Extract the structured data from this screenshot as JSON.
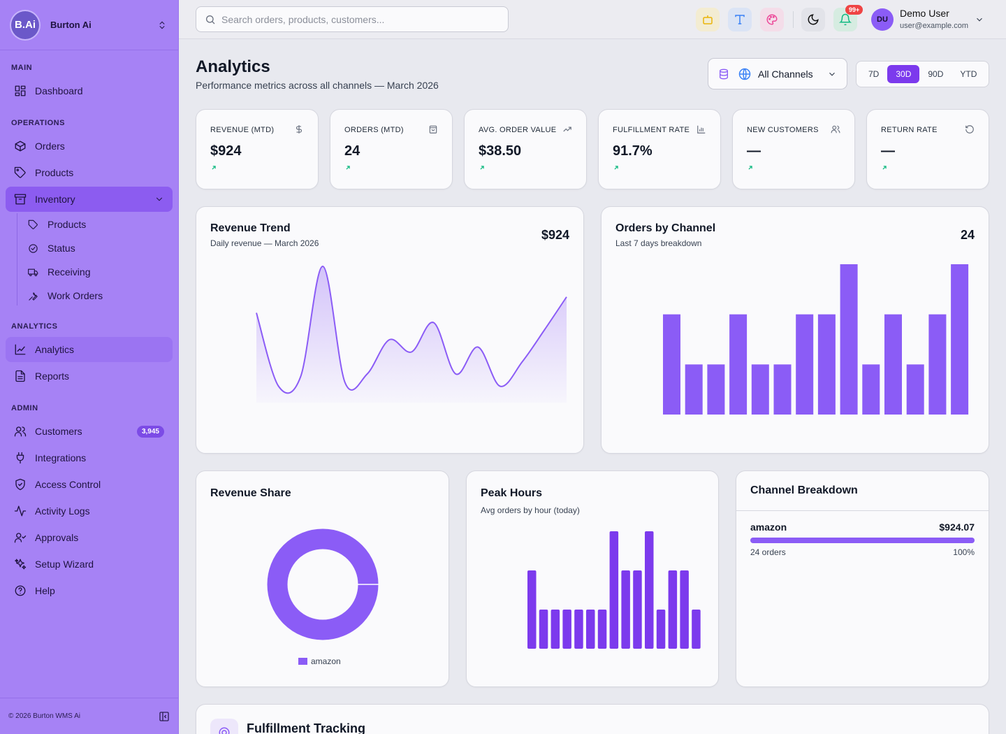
{
  "app": {
    "brand_initials": "B.Ai",
    "brand_name": "Burton Ai",
    "footer": "© 2026 Burton WMS Ai"
  },
  "sidebar": {
    "sections": {
      "main": "MAIN",
      "operations": "OPERATIONS",
      "analytics": "ANALYTICS",
      "admin": "ADMIN"
    },
    "dashboard": "Dashboard",
    "orders": "Orders",
    "products": "Products",
    "inventory": "Inventory",
    "inventory_sub": [
      "Products",
      "Status",
      "Receiving",
      "Work Orders"
    ],
    "analytics": "Analytics",
    "reports": "Reports",
    "customers": "Customers",
    "customers_badge": "3,945",
    "integrations": "Integrations",
    "access_control": "Access Control",
    "activity_logs": "Activity Logs",
    "approvals": "Approvals",
    "setup_wizard": "Setup Wizard",
    "help": "Help"
  },
  "topbar": {
    "search_placeholder": "Search orders, products, customers...",
    "notif_badge": "99+",
    "user_initials": "DU",
    "user_name": "Demo User",
    "user_email": "user@example.com"
  },
  "page": {
    "title": "Analytics",
    "subtitle": "Performance metrics across all channels — March 2026",
    "channel_select": "All Channels",
    "ranges": [
      "7D",
      "30D",
      "90D",
      "YTD"
    ],
    "active_range": "30D"
  },
  "kpis": [
    {
      "label": "REVENUE (MTD)",
      "value": "$924",
      "icon": "dollar-icon"
    },
    {
      "label": "ORDERS (MTD)",
      "value": "24",
      "icon": "shopping-bag-icon"
    },
    {
      "label": "AVG. ORDER VALUE",
      "value": "$38.50",
      "icon": "trending-up-icon"
    },
    {
      "label": "FULFILLMENT RATE",
      "value": "91.7%",
      "icon": "bar-chart-icon"
    },
    {
      "label": "NEW CUSTOMERS",
      "value": "—",
      "icon": "users-icon"
    },
    {
      "label": "RETURN RATE",
      "value": "—",
      "icon": "rotate-ccw-icon"
    }
  ],
  "revenue_trend": {
    "title": "Revenue Trend",
    "subtitle": "Daily revenue — March 2026",
    "total": "$924"
  },
  "orders_by_channel": {
    "title": "Orders by Channel",
    "subtitle": "Last 7 days breakdown",
    "total": "24"
  },
  "revenue_share": {
    "title": "Revenue Share",
    "legend": "amazon"
  },
  "peak_hours": {
    "title": "Peak Hours",
    "subtitle": "Avg orders by hour (today)"
  },
  "channel_breakdown": {
    "title": "Channel Breakdown",
    "rows": [
      {
        "channel": "amazon",
        "revenue": "$924.07",
        "orders": "24 orders",
        "share": "100%",
        "share_value": 1.0
      }
    ]
  },
  "fulfillment": {
    "title": "Fulfillment Tracking"
  },
  "colors": {
    "accent": "#7c3aed",
    "bar": "#8b5cf6",
    "sidebar": "#a682f5"
  },
  "chart_data": [
    {
      "type": "area",
      "title": "Revenue Trend",
      "x": [
        1,
        2,
        3,
        4,
        5,
        6,
        7,
        8,
        9,
        10,
        11,
        12,
        13,
        14,
        15
      ],
      "values": [
        62,
        2,
        10,
        100,
        5,
        12,
        40,
        30,
        54,
        12,
        34,
        2,
        22,
        48,
        75
      ],
      "ylim": [
        0,
        100
      ],
      "grid": false
    },
    {
      "type": "bar",
      "title": "Orders by Channel",
      "values": [
        2,
        1,
        1,
        2,
        1,
        1,
        2,
        2,
        3,
        1,
        2,
        1,
        2,
        3
      ],
      "ylim": [
        0,
        3
      ]
    },
    {
      "type": "pie",
      "title": "Revenue Share",
      "categories": [
        "amazon"
      ],
      "values": [
        100
      ],
      "donut": true
    },
    {
      "type": "bar",
      "title": "Peak Hours",
      "values": [
        2,
        1,
        1,
        1,
        1,
        1,
        1,
        3,
        2,
        2,
        3,
        1,
        2,
        2,
        1
      ],
      "ylim": [
        0,
        3
      ]
    }
  ]
}
